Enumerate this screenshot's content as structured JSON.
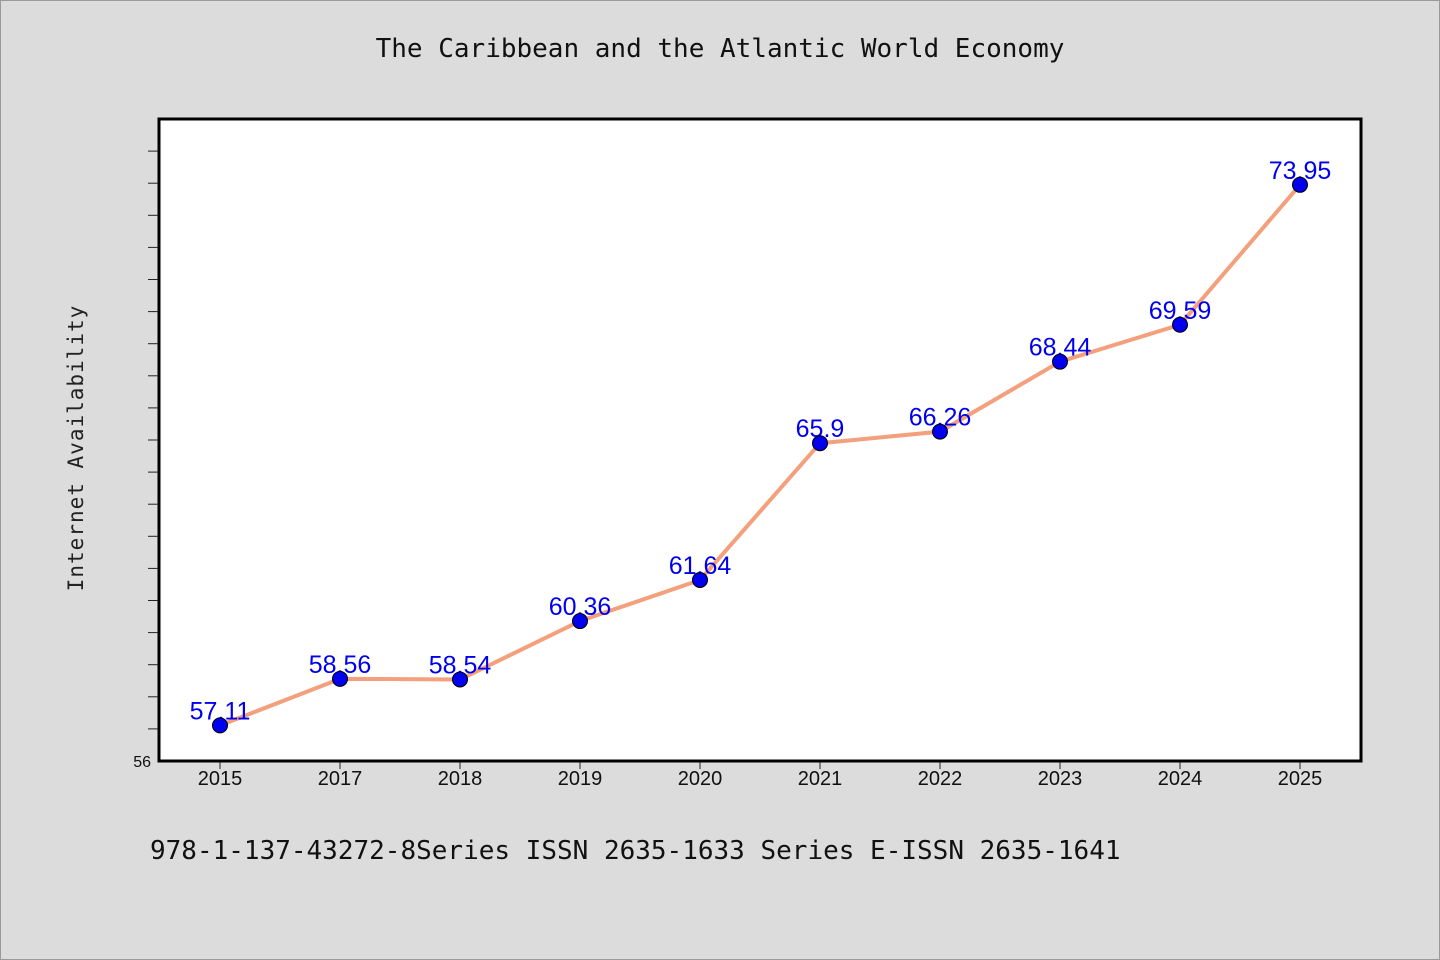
{
  "chart_data": {
    "type": "line",
    "title": "The Caribbean and the Atlantic World Economy",
    "ylabel": "Internet Availability",
    "xlabel": "",
    "categories": [
      "2015",
      "2017",
      "2018",
      "2019",
      "2020",
      "2021",
      "2022",
      "2023",
      "2024",
      "2025"
    ],
    "series": [
      {
        "values": [
          57.11,
          58.56,
          58.54,
          60.36,
          61.64,
          65.9,
          66.26,
          68.44,
          69.59,
          73.95
        ],
        "data_labels": [
          "57.11",
          "58.56",
          "58.54",
          "60.36",
          "61.64",
          "65.9",
          "66.26",
          "68.44",
          "69.59",
          "73.95"
        ]
      }
    ],
    "ylim": [
      56,
      76
    ],
    "y_tick_labels": [
      "56"
    ],
    "grid": false,
    "line_color": "#f4a07c",
    "marker_color": "#0000ee",
    "label_color": "#0000ee"
  },
  "footer": "978-1-137-43272-8Series ISSN 2635-1633 Series E-ISSN 2635-1641"
}
